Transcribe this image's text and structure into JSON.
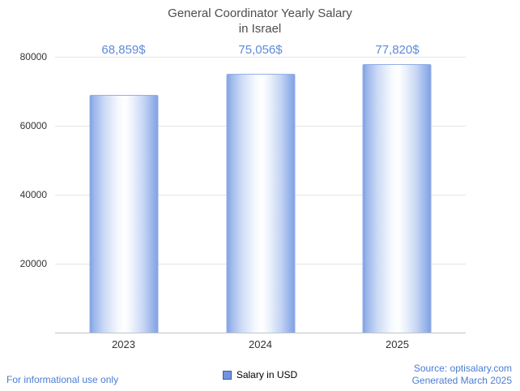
{
  "title": {
    "line1": "General Coordinator Yearly Salary",
    "line2": "in Israel"
  },
  "chart_data": {
    "type": "bar",
    "title": "General Coordinator Yearly Salary in Israel",
    "categories": [
      "2023",
      "2024",
      "2025"
    ],
    "values": [
      68859,
      75056,
      77820
    ],
    "value_labels": [
      "68,859$",
      "75,056$",
      "77,820$"
    ],
    "xlabel": "",
    "ylabel": "",
    "ylim": [
      0,
      80000
    ],
    "yticks": [
      80000,
      60000,
      40000,
      20000
    ],
    "grid": true,
    "legend": {
      "label": "Salary in USD",
      "position": "bottom-center",
      "marker_color": "#7293dd"
    },
    "colors": {
      "bar_edge": "#82a2e4",
      "bar_center": "#ffffff",
      "bar_border": "#93afe6",
      "value_label": "#5f8ad8",
      "footer_text": "#4a7dd3",
      "title_text": "#4d4d4d",
      "gridline": "#e4e4e4"
    }
  },
  "footer": {
    "left_note": "For informational use only",
    "source": "Source: optisalary.com",
    "generated": "Generated March 2025"
  }
}
